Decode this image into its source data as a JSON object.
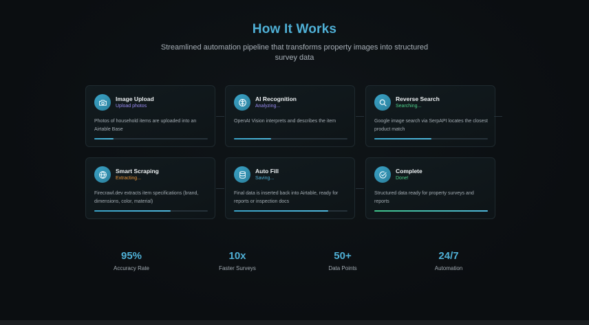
{
  "header": {
    "title": "How It Works",
    "subtitle": "Streamlined automation pipeline that transforms property images into structured survey data"
  },
  "steps": [
    {
      "title": "Image Upload",
      "status": "Upload photos",
      "status_color": "#9b8cf2",
      "description": "Photos of household items are uploaded into an Airtable Base",
      "progress": 0.17,
      "icon": "camera-icon"
    },
    {
      "title": "AI Recognition",
      "status": "Analyzing...",
      "status_color": "#9b8cf2",
      "description": "OpenAI Vision interprets and describes the item",
      "progress": 0.33,
      "icon": "brain-icon"
    },
    {
      "title": "Reverse Search",
      "status": "Searching...",
      "status_color": "#4fd18b",
      "description": "Google image search via SerpAPI locates the closest product match",
      "progress": 0.5,
      "icon": "search-icon"
    },
    {
      "title": "Smart Scraping",
      "status": "Extracting...",
      "status_color": "#e8943a",
      "description": "Firecrawl.dev extracts item specifications (brand, dimensions, color, material)",
      "progress": 0.67,
      "icon": "globe-icon"
    },
    {
      "title": "Auto Fill",
      "status": "Saving...",
      "status_color": "#4fb0d6",
      "description": "Final data is inserted back into Airtable, ready for reports or inspection docs",
      "progress": 0.83,
      "icon": "database-icon"
    },
    {
      "title": "Complete",
      "status": "Done!",
      "status_color": "#4fd18b",
      "description": "Structured data ready for property surveys and reports",
      "progress": 1.0,
      "icon": "check-circle-icon"
    }
  ],
  "stats": [
    {
      "value": "95%",
      "label": "Accuracy Rate"
    },
    {
      "value": "10x",
      "label": "Faster Surveys"
    },
    {
      "value": "50+",
      "label": "Data Points"
    },
    {
      "value": "24/7",
      "label": "Automation"
    }
  ],
  "colors": {
    "accent": "#4fb0d6",
    "background": "#0b0e11",
    "card_border": "#1f2a2f"
  }
}
